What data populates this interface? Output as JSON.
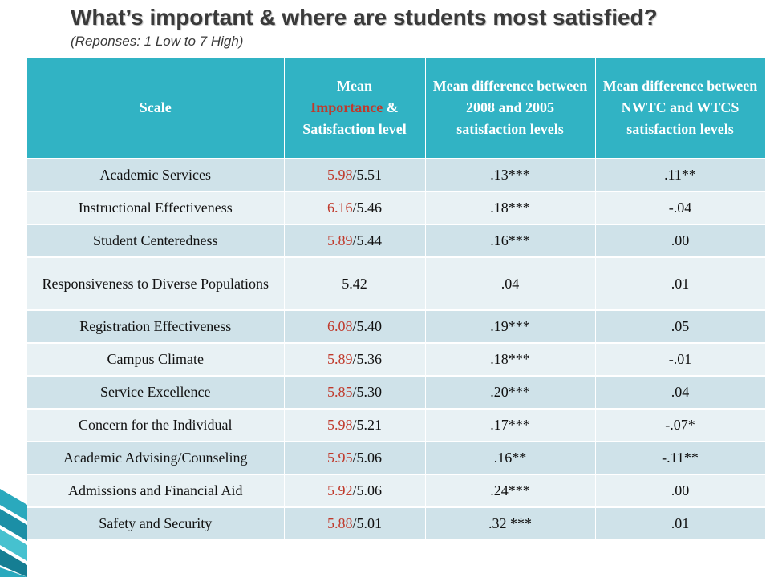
{
  "slide": {
    "title": "What’s important & where are students most satisfied?",
    "subtitle": "(Reponses: 1 Low to 7 High)"
  },
  "colors": {
    "header_bg": "#31b3c4",
    "row_odd": "#cfe2e9",
    "row_even": "#e8f1f4",
    "importance_text": "#c0392b"
  },
  "table": {
    "headers": {
      "scale": "Scale",
      "mean_line1": "Mean",
      "mean_importance_word": "Importance",
      "mean_amp": " &",
      "mean_line3": "Satisfaction level",
      "diff_2008_2005": "Mean difference between 2008 and 2005 satisfaction levels",
      "diff_nwtc_wtcs": "Mean difference between NWTC and WTCS satisfaction levels"
    },
    "rows": [
      {
        "scale": "Academic Services",
        "importance": "5.98",
        "sep": "/",
        "satisfaction": "5.51",
        "diff_years": ".13***",
        "diff_nwtc": ".11**"
      },
      {
        "scale": "Instructional Effectiveness",
        "importance": "6.16",
        "sep": "/",
        "satisfaction": "5.46",
        "diff_years": ".18***",
        "diff_nwtc": "-.04"
      },
      {
        "scale": "Student Centeredness",
        "importance": "5.89",
        "sep": "/",
        "satisfaction": "5.44",
        "diff_years": ".16***",
        "diff_nwtc": ".00"
      },
      {
        "scale": "Responsiveness to Diverse Populations",
        "importance": "",
        "sep": "",
        "satisfaction": "5.42",
        "diff_years": ".04",
        "diff_nwtc": ".01"
      },
      {
        "scale": "Registration Effectiveness",
        "importance": "6.08",
        "sep": "/",
        "satisfaction": "5.40",
        "diff_years": ".19***",
        "diff_nwtc": ".05"
      },
      {
        "scale": "Campus Climate",
        "importance": "5.89",
        "sep": "/",
        "satisfaction": "5.36",
        "diff_years": ".18***",
        "diff_nwtc": "-.01"
      },
      {
        "scale": "Service Excellence",
        "importance": "5.85",
        "sep": "/",
        "satisfaction": "5.30",
        "diff_years": ".20***",
        "diff_nwtc": ".04"
      },
      {
        "scale": "Concern for the Individual",
        "importance": "5.98",
        "sep": "/",
        "satisfaction": "5.21",
        "diff_years": ".17***",
        "diff_nwtc": "-.07*"
      },
      {
        "scale": "Academic Advising/Counseling",
        "importance": "5.95",
        "sep": "/",
        "satisfaction": "5.06",
        "diff_years": ".16**",
        "diff_nwtc": "-.11**"
      },
      {
        "scale": "Admissions and Financial Aid",
        "importance": "5.92",
        "sep": "/",
        "satisfaction": "5.06",
        "diff_years": ".24***",
        "diff_nwtc": ".00"
      },
      {
        "scale": "Safety and Security",
        "importance": "5.88",
        "sep": "/",
        "satisfaction": "5.01",
        "diff_years": ".32 ***",
        "diff_nwtc": ".01"
      }
    ]
  }
}
